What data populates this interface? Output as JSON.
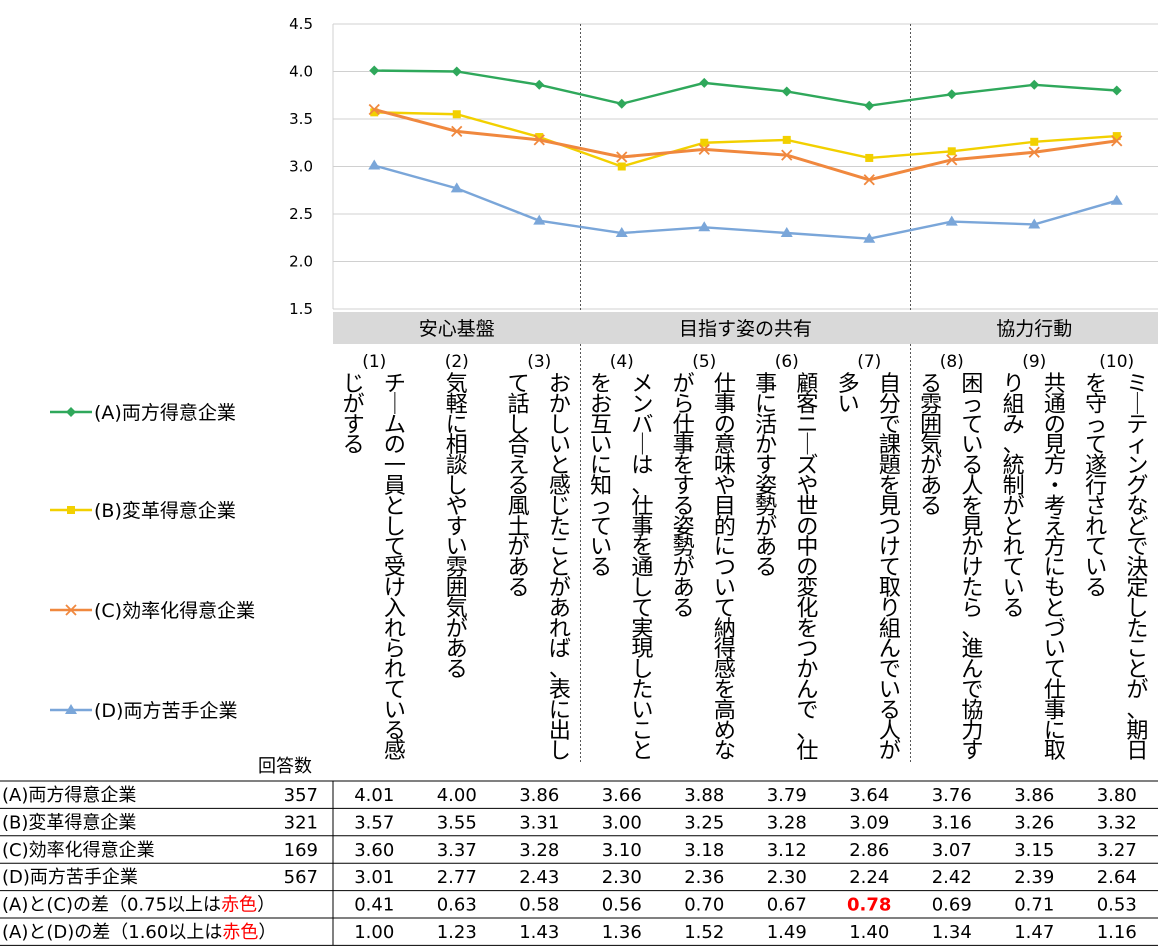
{
  "chart_data": {
    "type": "line",
    "ylim": [
      1.5,
      4.5
    ],
    "yticks": [
      "1.5",
      "2.0",
      "2.5",
      "3.0",
      "3.5",
      "4.0",
      "4.5"
    ],
    "grid": "horizontal",
    "legend_position": "left",
    "groups": [
      {
        "label": "安心基盤",
        "span": 3
      },
      {
        "label": "目指す姿の共有",
        "span": 4
      },
      {
        "label": "協力行動",
        "span": 3
      }
    ],
    "categories": [
      {
        "num": "(1)",
        "text": "チームの一員として受け入れられている感じがする"
      },
      {
        "num": "(2)",
        "text": "気軽に相談しやすい雰囲気がある"
      },
      {
        "num": "(3)",
        "text": "おかしいと感じたことがあれば、表に出して話し合える風土がある"
      },
      {
        "num": "(4)",
        "text": "メンバーは、仕事を通して実現したいことをお互いに知っている"
      },
      {
        "num": "(5)",
        "text": "仕事の意味や目的について納得感を高めながら仕事をする姿勢がある"
      },
      {
        "num": "(6)",
        "text": "顧客ニーズや世の中の変化をつかんで、仕事に活かす姿勢がある"
      },
      {
        "num": "(7)",
        "text": "自分で課題を見つけて取り組んでいる人が多い"
      },
      {
        "num": "(8)",
        "text": "困っている人を見かけたら、進んで協力する雰囲気がある"
      },
      {
        "num": "(9)",
        "text": "共通の見方・考え方にもとづいて仕事に取り組み、統制がとれている"
      },
      {
        "num": "(10)",
        "text": "ミーティングなどで決定したことが、期日を守って遂行されている"
      }
    ],
    "series": [
      {
        "name": "(A)両方得意企業",
        "color": "#2fa85b",
        "marker": "diamond",
        "values": [
          4.01,
          4.0,
          3.86,
          3.66,
          3.88,
          3.79,
          3.64,
          3.76,
          3.86,
          3.8
        ]
      },
      {
        "name": "(B)変革得意企業",
        "color": "#f2d000",
        "marker": "square",
        "values": [
          3.57,
          3.55,
          3.31,
          3.0,
          3.25,
          3.28,
          3.09,
          3.16,
          3.26,
          3.32
        ]
      },
      {
        "name": "(C)効率化得意企業",
        "color": "#f0883e",
        "marker": "x",
        "values": [
          3.6,
          3.37,
          3.28,
          3.1,
          3.18,
          3.12,
          2.86,
          3.07,
          3.15,
          3.27
        ]
      },
      {
        "name": "(D)両方苦手企業",
        "color": "#7aa6d9",
        "marker": "triangle",
        "values": [
          3.01,
          2.77,
          2.43,
          2.3,
          2.36,
          2.3,
          2.24,
          2.42,
          2.39,
          2.64
        ]
      }
    ]
  },
  "table": {
    "count_header": "回答数",
    "rows": [
      {
        "label": "(A)両方得意企業",
        "count": "357",
        "values": [
          "4.01",
          "4.00",
          "3.86",
          "3.66",
          "3.88",
          "3.79",
          "3.64",
          "3.76",
          "3.86",
          "3.80"
        ]
      },
      {
        "label": "(B)変革得意企業",
        "count": "321",
        "values": [
          "3.57",
          "3.55",
          "3.31",
          "3.00",
          "3.25",
          "3.28",
          "3.09",
          "3.16",
          "3.26",
          "3.32"
        ]
      },
      {
        "label": "(C)効率化得意企業",
        "count": "169",
        "values": [
          "3.60",
          "3.37",
          "3.28",
          "3.10",
          "3.18",
          "3.12",
          "2.86",
          "3.07",
          "3.15",
          "3.27"
        ]
      },
      {
        "label": "(D)両方苦手企業",
        "count": "567",
        "values": [
          "3.01",
          "2.77",
          "2.43",
          "2.30",
          "2.36",
          "2.30",
          "2.24",
          "2.42",
          "2.39",
          "2.64"
        ]
      },
      {
        "label_main": "(A)と(C)の差（0.75以上は",
        "label_red": "赤色",
        "label_end": "）",
        "count": "",
        "values": [
          "0.41",
          "0.63",
          "0.58",
          "0.56",
          "0.70",
          "0.67",
          "0.78",
          "0.69",
          "0.71",
          "0.53"
        ],
        "highlight": [
          6
        ]
      },
      {
        "label_main": "(A)と(D)の差（1.60以上は",
        "label_red": "赤色",
        "label_end": "）",
        "count": "",
        "values": [
          "1.00",
          "1.23",
          "1.43",
          "1.36",
          "1.52",
          "1.49",
          "1.40",
          "1.34",
          "1.47",
          "1.16"
        ],
        "highlight": []
      }
    ],
    "highlight_color": "#ff0000"
  }
}
